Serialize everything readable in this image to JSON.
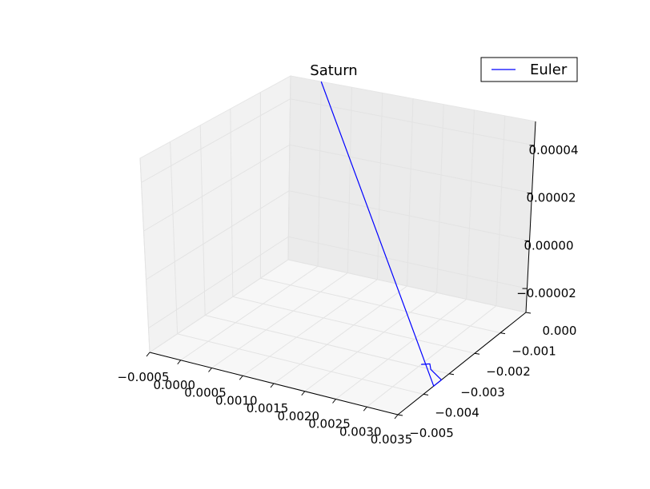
{
  "chart_data": {
    "type": "line",
    "projection": "3d",
    "title": "Saturn",
    "legend": {
      "placement": "top-right",
      "entries": [
        "Euler"
      ]
    },
    "grid": true,
    "xlim": [
      -0.0005,
      0.0035
    ],
    "ylim": [
      -0.005,
      0.0
    ],
    "zlim": [
      -3e-05,
      5e-05
    ],
    "x_ticks": [
      "−0.0005",
      "0.0000",
      "0.0005",
      "0.0010",
      "0.0015",
      "0.0020",
      "0.0025",
      "0.0030",
      "0.0035"
    ],
    "y_ticks": [
      "−0.005",
      "−0.004",
      "−0.003",
      "−0.002",
      "−0.001",
      "0.000"
    ],
    "z_ticks": [
      "−0.00002",
      "0.00000",
      "0.00002",
      "0.00004"
    ],
    "series": [
      {
        "name": "Euler",
        "color": "#0000ff",
        "points": [
          {
            "x": 0.0,
            "y": 0.0,
            "z": 5e-05
          },
          {
            "x": 0.0035,
            "y": -0.0036,
            "z": -3e-05
          },
          {
            "x": 0.0035,
            "y": -0.0033,
            "z": -3e-05
          },
          {
            "x": 0.0034,
            "y": -0.0032,
            "z": -3e-05
          },
          {
            "x": 0.0032,
            "y": -0.003,
            "z": -3e-05
          },
          {
            "x": 0.0031,
            "y": -0.0028,
            "z": -3e-05
          },
          {
            "x": 0.003,
            "y": -0.0029,
            "z": -3e-05
          }
        ]
      }
    ]
  }
}
